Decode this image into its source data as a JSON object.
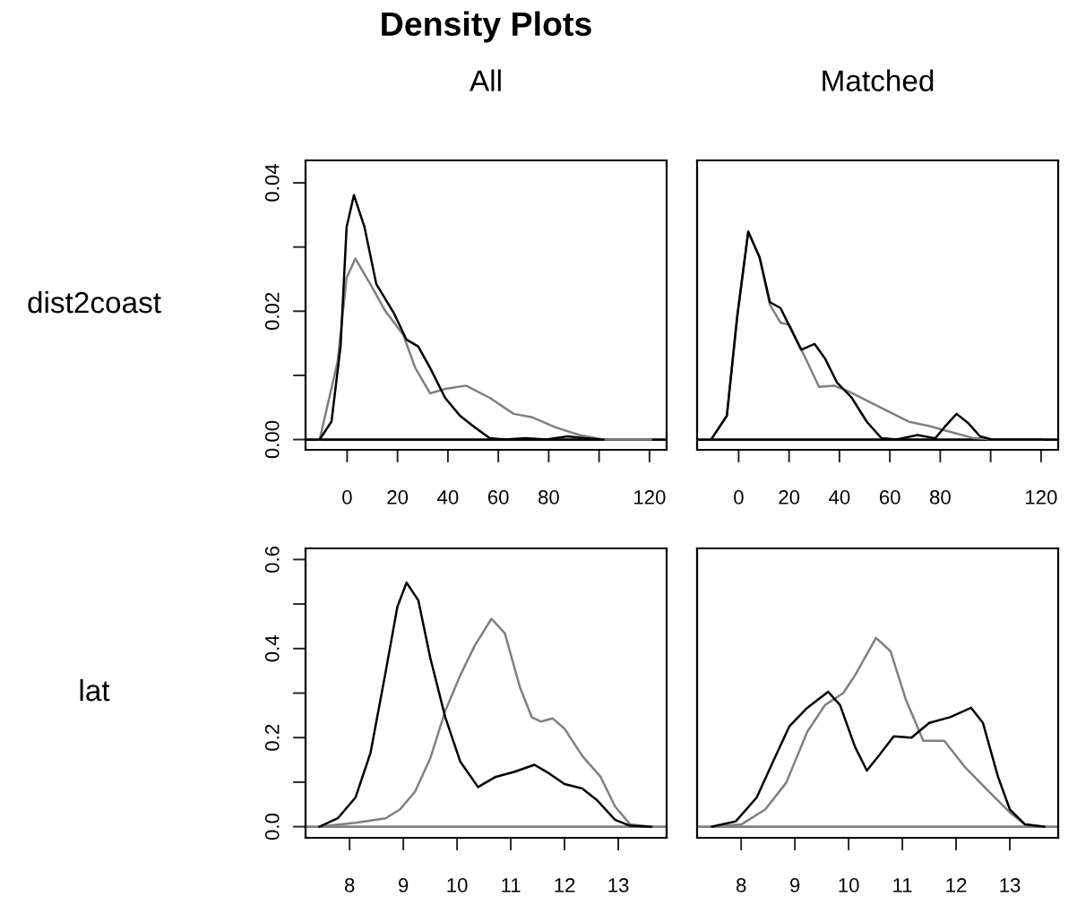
{
  "chart_data": [
    {
      "type": "line",
      "title": "Density Plots",
      "subtitle": "All",
      "ylabel": "dist2coast",
      "xlim": [
        -16.5,
        126.8
      ],
      "ylim": [
        -0.0016,
        0.0435
      ],
      "xticks": [
        0,
        20,
        40,
        60,
        80,
        {
          "value": 100,
          "label": null
        },
        120
      ],
      "yticks": [
        {
          "value": 0,
          "label": "0.00"
        },
        {
          "value": 0.01,
          "label": null
        },
        {
          "value": 0.02,
          "label": "0.02"
        },
        {
          "value": 0.03,
          "label": null
        },
        {
          "value": 0.04,
          "label": "0.04"
        }
      ],
      "grid": false,
      "legend": false,
      "marker": "none",
      "line_style": "solid",
      "ref_lines": [
        {
          "axis": "y",
          "value": 0,
          "color": "#000000"
        }
      ],
      "series": [
        {
          "color": "#808080",
          "x": [
            -10.9,
            -3.8,
            -0.2,
            3.3,
            9.2,
            15.2,
            22.3,
            27.0,
            32.9,
            38.9,
            47.2,
            56.6,
            66.1,
            73.2,
            82.7,
            92.2,
            101.7,
            110,
            120.6
          ],
          "values": [
            0,
            0.0121,
            0.0252,
            0.0282,
            0.0242,
            0.02,
            0.0163,
            0.0112,
            0.0072,
            0.0079,
            0.0084,
            0.0065,
            0.004,
            0.0035,
            0.0019,
            0.0007,
            0,
            0,
            0
          ]
        },
        {
          "color": "#000000",
          "x": [
            -10.9,
            -6.2,
            -2.6,
            -0.2,
            2.7,
            6.9,
            11.6,
            18.7,
            23.5,
            28.2,
            32.9,
            38.9,
            44.8,
            50.7,
            56.6,
            62.6,
            70.9,
            79.1,
            87.4,
            94.5,
            101.7
          ],
          "values": [
            0,
            0.0028,
            0.0145,
            0.0331,
            0.0381,
            0.0331,
            0.0242,
            0.0196,
            0.0156,
            0.0145,
            0.0112,
            0.0065,
            0.0037,
            0.0019,
            0.0002,
            0,
            0.0002,
            0,
            0.0005,
            0.0002,
            0
          ]
        }
      ]
    },
    {
      "type": "line",
      "subtitle": "Matched",
      "xlim": [
        -16.5,
        126.8
      ],
      "ylim": [
        -0.0016,
        0.0435
      ],
      "xticks": [
        0,
        20,
        40,
        60,
        80,
        {
          "value": 100,
          "label": null
        },
        120
      ],
      "tick_labels": "x",
      "grid": false,
      "legend": false,
      "marker": "none",
      "line_style": "solid",
      "ref_lines": [
        {
          "axis": "y",
          "value": 0,
          "color": "#000000"
        }
      ],
      "series": [
        {
          "color": "#808080",
          "x": [
            -10.6,
            -4.7,
            -0.6,
            3.8,
            8.3,
            12.4,
            16.6,
            20.1,
            26.0,
            31.9,
            37.8,
            43.7,
            53.2,
            60.3,
            67.4,
            75.7,
            84,
            93.4,
            101.7,
            120.6
          ],
          "values": [
            0.0002,
            0.0037,
            0.0191,
            0.0324,
            0.0284,
            0.021,
            0.0182,
            0.0179,
            0.0131,
            0.0082,
            0.0084,
            0.0075,
            0.0056,
            0.0042,
            0.0028,
            0.0021,
            0.0012,
            0.0002,
            0,
            0
          ]
        },
        {
          "color": "#000000",
          "x": [
            -10.6,
            -4.7,
            -0.6,
            3.8,
            8.3,
            12.4,
            16.6,
            20.1,
            24.8,
            30.1,
            34.3,
            39.0,
            44.9,
            50.8,
            56.7,
            62.7,
            70.9,
            78.0,
            81.6,
            86.5,
            91.0,
            95.8,
            100.5,
            120.6
          ],
          "values": [
            0.0002,
            0.0037,
            0.0191,
            0.0324,
            0.0284,
            0.0214,
            0.0205,
            0.0177,
            0.014,
            0.0149,
            0.0126,
            0.0089,
            0.0065,
            0.0028,
            0.0002,
            0,
            0.0007,
            0.0002,
            0.0019,
            0.004,
            0.0026,
            0.0005,
            0,
            0
          ]
        }
      ]
    },
    {
      "type": "line",
      "ylabel": "lat",
      "xlim": [
        7.18,
        13.9
      ],
      "ylim": [
        -0.025,
        0.625
      ],
      "xticks": [
        8,
        9,
        10,
        11,
        12,
        13
      ],
      "yticks": [
        {
          "value": 0,
          "label": "0.0"
        },
        {
          "value": 0.1,
          "label": null
        },
        0.2,
        {
          "value": 0.3,
          "label": null
        },
        0.4,
        {
          "value": 0.5,
          "label": null
        },
        0.6
      ],
      "grid": false,
      "legend": false,
      "marker": "none",
      "line_style": "solid",
      "ref_lines": [
        {
          "axis": "y",
          "value": 0,
          "color": "#808080"
        }
      ],
      "series": [
        {
          "color": "#808080",
          "x": [
            7.44,
            8.11,
            8.67,
            8.94,
            9.22,
            9.5,
            9.78,
            10.06,
            10.33,
            10.64,
            10.89,
            11.17,
            11.39,
            11.56,
            11.78,
            12.0,
            12.33,
            12.67,
            12.94,
            13.22,
            13.61
          ],
          "values": [
            0,
            0.0087,
            0.0188,
            0.0388,
            0.079,
            0.153,
            0.26,
            0.34,
            0.407,
            0.467,
            0.434,
            0.313,
            0.246,
            0.236,
            0.243,
            0.22,
            0.159,
            0.112,
            0.0455,
            0.0054,
            0
          ]
        },
        {
          "color": "#000000",
          "x": [
            7.44,
            7.78,
            8.11,
            8.39,
            8.67,
            8.89,
            9.06,
            9.28,
            9.5,
            9.78,
            10.06,
            10.39,
            10.72,
            11.06,
            11.44,
            11.72,
            12.0,
            12.33,
            12.61,
            12.94,
            13.22,
            13.61
          ],
          "values": [
            0,
            0.0188,
            0.0656,
            0.166,
            0.347,
            0.494,
            0.548,
            0.508,
            0.38,
            0.246,
            0.146,
            0.089,
            0.112,
            0.123,
            0.139,
            0.119,
            0.0958,
            0.0857,
            0.0589,
            0.0154,
            0.002,
            0
          ]
        }
      ]
    },
    {
      "type": "line",
      "xlim": [
        7.18,
        13.9
      ],
      "ylim": [
        -0.025,
        0.625
      ],
      "xticks": [
        8,
        9,
        10,
        11,
        12,
        13
      ],
      "tick_labels": "x",
      "grid": false,
      "legend": false,
      "marker": "none",
      "line_style": "solid",
      "ref_lines": [
        {
          "axis": "y",
          "value": 0,
          "color": "#808080"
        }
      ],
      "series": [
        {
          "color": "#808080",
          "x": [
            7.46,
            8.01,
            8.45,
            8.84,
            9.23,
            9.56,
            9.9,
            10.12,
            10.51,
            10.78,
            11.06,
            11.39,
            11.78,
            12.17,
            12.61,
            13.0,
            13.28,
            13.64
          ],
          "values": [
            0,
            0.0054,
            0.0388,
            0.099,
            0.213,
            0.273,
            0.3,
            0.34,
            0.424,
            0.394,
            0.287,
            0.193,
            0.193,
            0.133,
            0.079,
            0.032,
            0.0054,
            0
          ]
        },
        {
          "color": "#000000",
          "x": [
            7.46,
            7.9,
            8.29,
            8.62,
            8.9,
            9.23,
            9.62,
            9.84,
            10.12,
            10.34,
            10.56,
            10.84,
            11.17,
            11.5,
            11.89,
            12.28,
            12.5,
            12.78,
            13.0,
            13.28,
            13.64
          ],
          "values": [
            0,
            0.012,
            0.0656,
            0.153,
            0.226,
            0.267,
            0.303,
            0.273,
            0.179,
            0.126,
            0.159,
            0.203,
            0.2,
            0.233,
            0.246,
            0.267,
            0.233,
            0.112,
            0.0388,
            0.0054,
            0
          ]
        }
      ]
    }
  ]
}
